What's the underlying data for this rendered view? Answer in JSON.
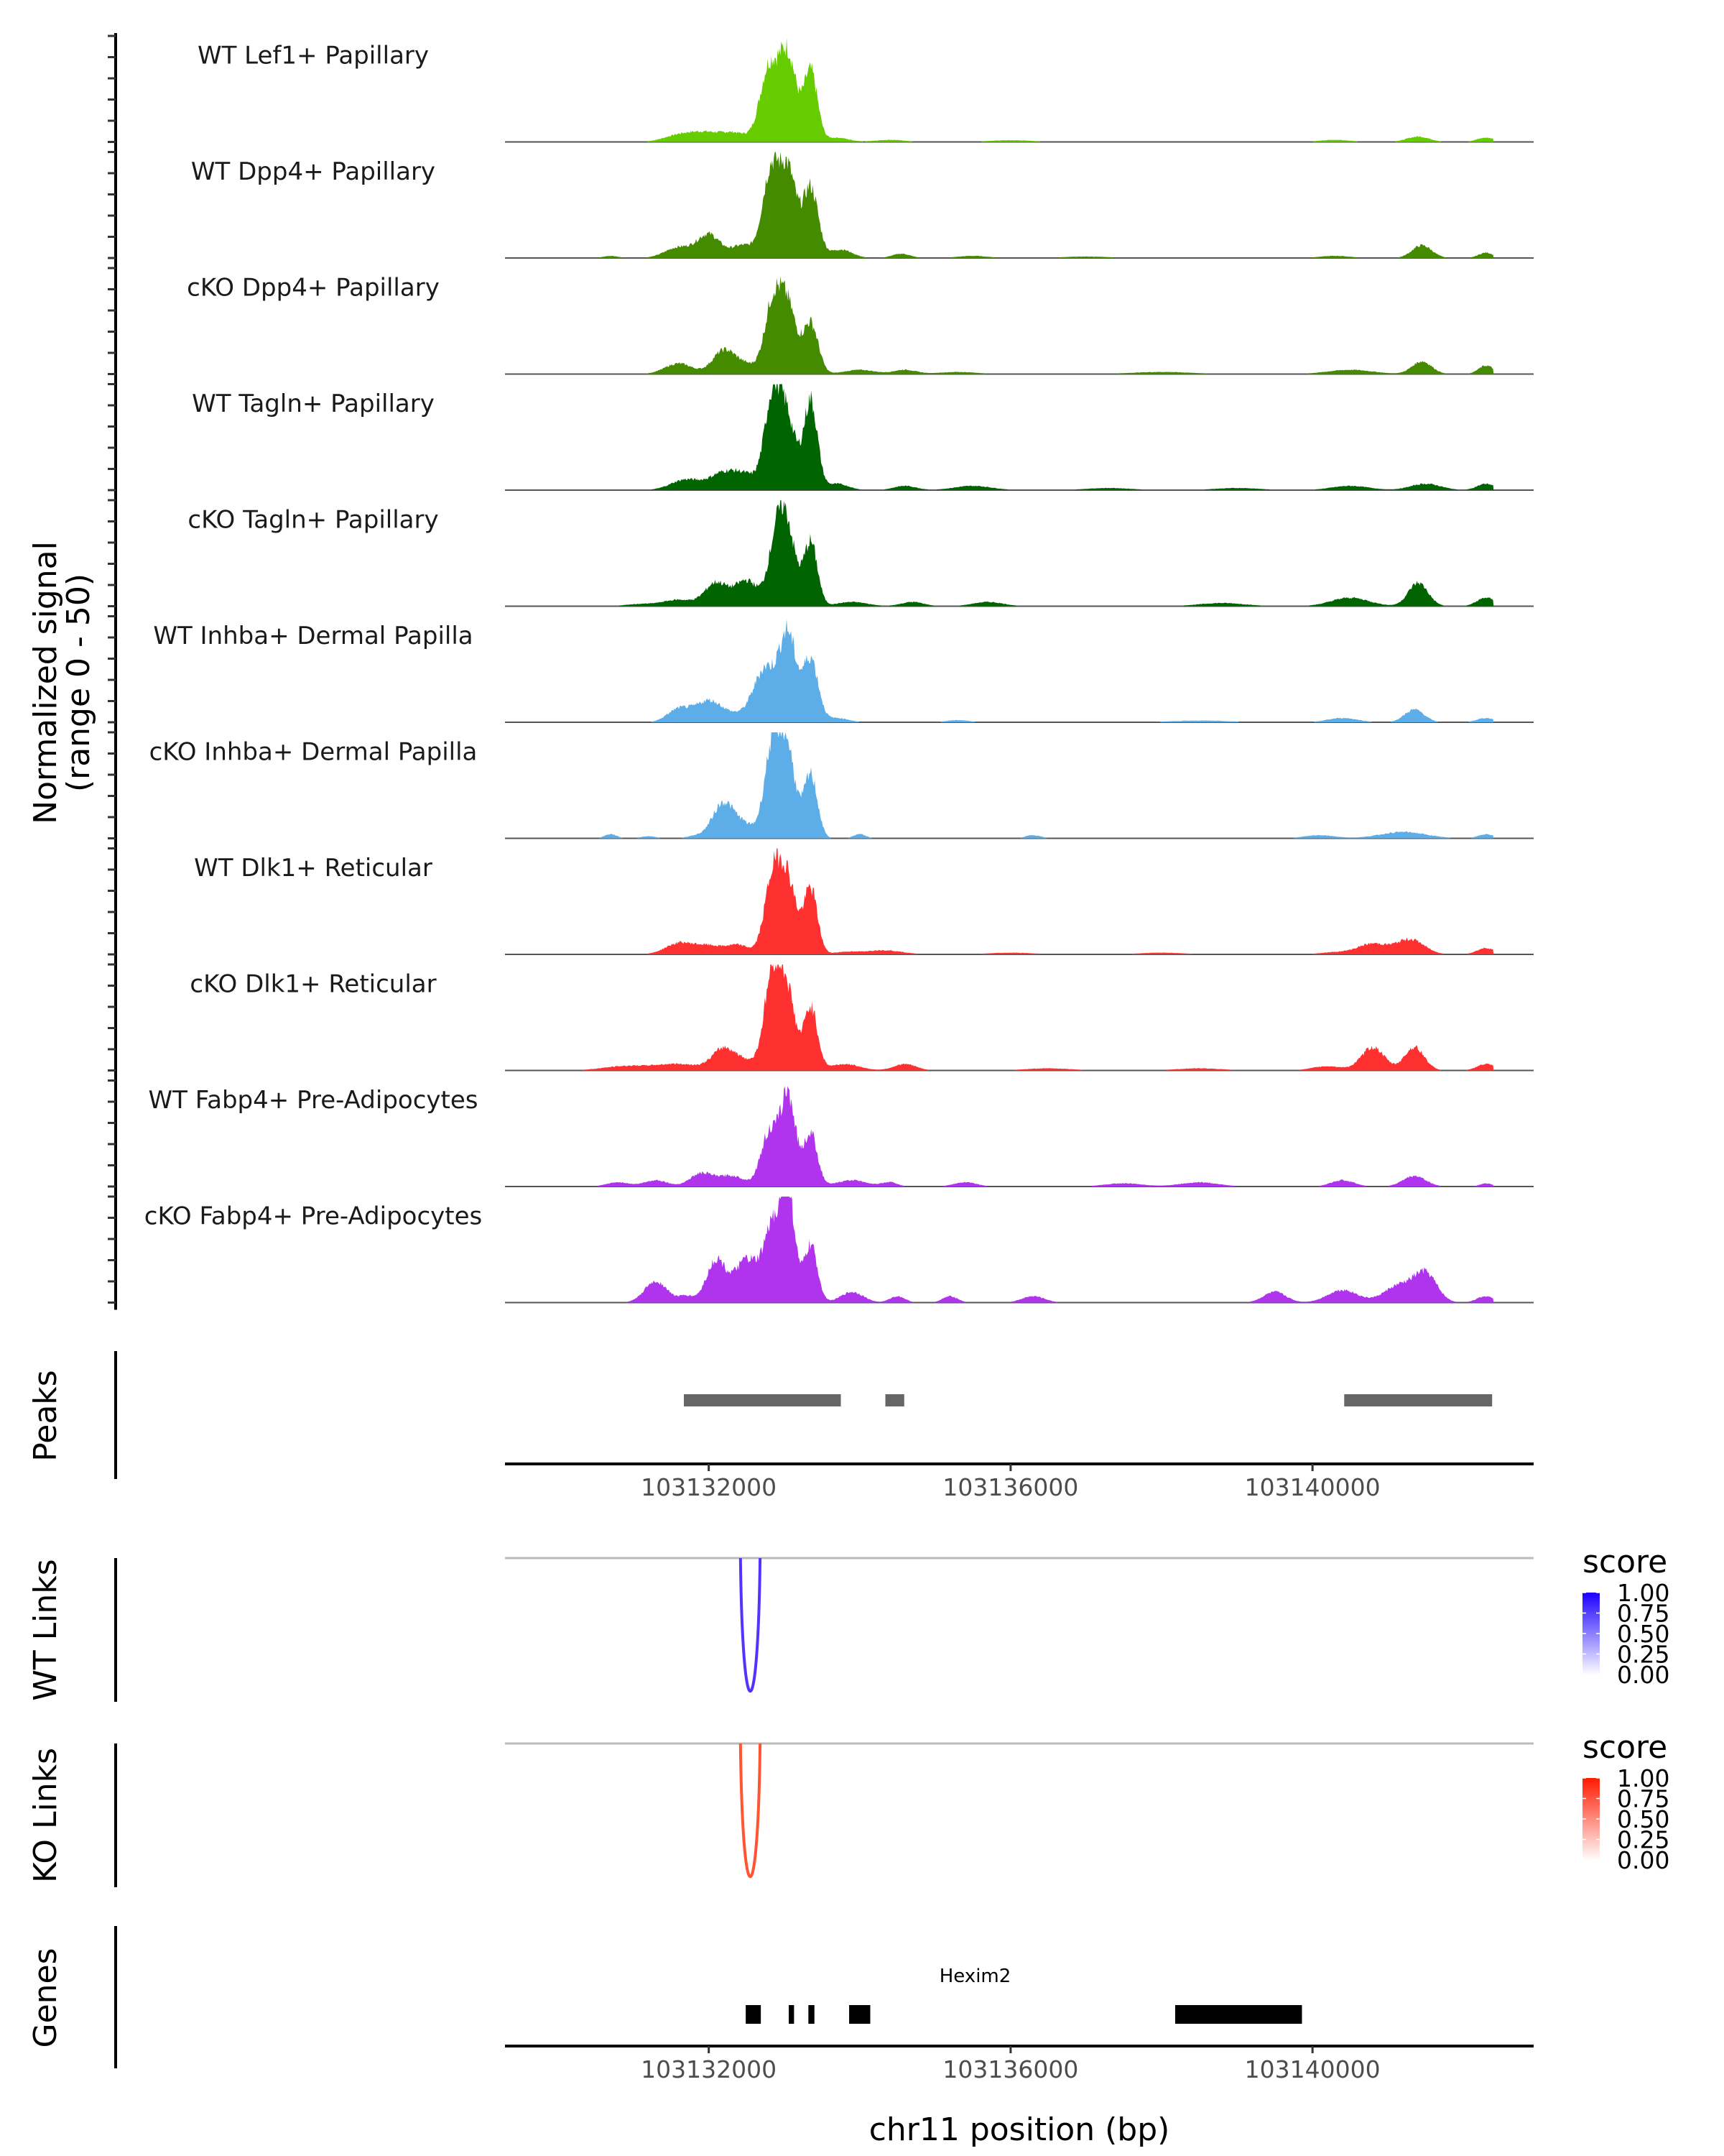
{
  "chart_data": {
    "type": "area",
    "title": "",
    "region": {
      "chrom": "chr11",
      "start": 103129300,
      "end": 103142930
    },
    "xlabel": "chr11 position (bp)",
    "x_ticks": [
      103132000,
      103136000,
      103140000
    ],
    "x_tick_labels": [
      "103132000",
      "103136000",
      "103140000"
    ],
    "coverage": {
      "ylabel_line1": "Normalized signal",
      "ylabel_line2": "(range 0 - 50)",
      "ylim": [
        0,
        50
      ],
      "data_start": 103130200,
      "data_end": 103142400,
      "tracks": [
        {
          "name": "WT Lef1+ Papillary",
          "color": "#66cc00",
          "peaks": [
            [
              103131600,
              3,
              200
            ],
            [
              103131950,
              4,
              200
            ],
            [
              103132350,
              4,
              180
            ],
            [
              103132800,
              35,
              120
            ],
            [
              103133050,
              40,
              110
            ],
            [
              103133350,
              33,
              90
            ],
            [
              103133700,
              2,
              150
            ],
            [
              103134400,
              1,
              200
            ],
            [
              103136000,
              0.8,
              300
            ],
            [
              103140300,
              1,
              200
            ],
            [
              103141400,
              2.5,
              150
            ],
            [
              103142300,
              2,
              120
            ]
          ]
        },
        {
          "name": "WT Dpp4+ Papillary",
          "color": "#458b00",
          "peaks": [
            [
              103130700,
              1,
              100
            ],
            [
              103131600,
              5,
              180
            ],
            [
              103132000,
              11,
              150
            ],
            [
              103132450,
              6,
              150
            ],
            [
              103132820,
              40,
              110
            ],
            [
              103133050,
              40,
              110
            ],
            [
              103133350,
              33,
              100
            ],
            [
              103133750,
              4,
              150
            ],
            [
              103134550,
              2,
              120
            ],
            [
              103135500,
              1,
              200
            ],
            [
              103137000,
              0.7,
              300
            ],
            [
              103140300,
              1,
              200
            ],
            [
              103141450,
              6,
              130
            ],
            [
              103142300,
              2.5,
              100
            ]
          ]
        },
        {
          "name": "cKO Dpp4+ Papillary",
          "color": "#458b00",
          "peaks": [
            [
              103131600,
              5,
              180
            ],
            [
              103132200,
              11,
              150
            ],
            [
              103132500,
              4,
              150
            ],
            [
              103132850,
              33,
              110
            ],
            [
              103133050,
              30,
              110
            ],
            [
              103133350,
              24,
              100
            ],
            [
              103134000,
              2,
              200
            ],
            [
              103134600,
              2,
              150
            ],
            [
              103135300,
              1,
              250
            ],
            [
              103138000,
              1,
              400
            ],
            [
              103140500,
              2,
              300
            ],
            [
              103141450,
              6,
              130
            ],
            [
              103142300,
              4,
              100
            ]
          ]
        },
        {
          "name": "WT Tagln+ Papillary",
          "color": "#006400",
          "peaks": [
            [
              103131700,
              5,
              200
            ],
            [
              103132200,
              8,
              180
            ],
            [
              103132500,
              6,
              150
            ],
            [
              103132850,
              44,
              110
            ],
            [
              103133050,
              30,
              110
            ],
            [
              103133350,
              42,
              90
            ],
            [
              103133700,
              3,
              150
            ],
            [
              103134600,
              2,
              150
            ],
            [
              103135500,
              2,
              250
            ],
            [
              103137300,
              1,
              300
            ],
            [
              103139000,
              1,
              300
            ],
            [
              103140500,
              2,
              250
            ],
            [
              103141500,
              3,
              200
            ],
            [
              103142300,
              3,
              120
            ]
          ]
        },
        {
          "name": "cKO Tagln+ Papillary",
          "color": "#006400",
          "peaks": [
            [
              103131100,
              1,
              200
            ],
            [
              103131600,
              3,
              200
            ],
            [
              103132100,
              11,
              150
            ],
            [
              103132500,
              12,
              150
            ],
            [
              103132900,
              30,
              110
            ],
            [
              103133050,
              30,
              110
            ],
            [
              103133350,
              30,
              90
            ],
            [
              103133900,
              2,
              200
            ],
            [
              103134700,
              2,
              150
            ],
            [
              103135700,
              2,
              200
            ],
            [
              103138800,
              1.5,
              300
            ],
            [
              103140500,
              4,
              250
            ],
            [
              103141400,
              11,
              130
            ],
            [
              103142300,
              4,
              120
            ]
          ]
        },
        {
          "name": "WT Inhba+ Dermal Papilla",
          "color": "#5dade8",
          "peaks": [
            [
              103131600,
              6,
              150
            ],
            [
              103132000,
              10,
              180
            ],
            [
              103132400,
              3,
              180
            ],
            [
              103132750,
              25,
              150
            ],
            [
              103133050,
              40,
              110
            ],
            [
              103133350,
              30,
              100
            ],
            [
              103133700,
              2,
              150
            ],
            [
              103135300,
              1,
              150
            ],
            [
              103138500,
              0.8,
              400
            ],
            [
              103140400,
              2,
              200
            ],
            [
              103141350,
              6,
              130
            ],
            [
              103142300,
              2,
              120
            ]
          ]
        },
        {
          "name": "cKO Inhba+ Dermal Papilla",
          "color": "#5dade8",
          "peaks": [
            [
              103130700,
              2,
              80
            ],
            [
              103131200,
              1,
              100
            ],
            [
              103131800,
              1,
              100
            ],
            [
              103132200,
              17,
              150
            ],
            [
              103132500,
              5,
              120
            ],
            [
              103132850,
              45,
              110
            ],
            [
              103133050,
              38,
              100
            ],
            [
              103133350,
              30,
              90
            ],
            [
              103134000,
              2,
              80
            ],
            [
              103136300,
              1.5,
              100
            ],
            [
              103140100,
              1.5,
              200
            ],
            [
              103141200,
              3,
              300
            ],
            [
              103142300,
              2,
              100
            ]
          ]
        },
        {
          "name": "WT Dlk1+ Reticular",
          "color": "#ff3030",
          "peaks": [
            [
              103131600,
              5,
              180
            ],
            [
              103132000,
              4,
              200
            ],
            [
              103132400,
              4,
              150
            ],
            [
              103132850,
              36,
              110
            ],
            [
              103133050,
              33,
              110
            ],
            [
              103133350,
              31,
              90
            ],
            [
              103133800,
              1,
              150
            ],
            [
              103134300,
              2,
              250
            ],
            [
              103136000,
              0.8,
              300
            ],
            [
              103138000,
              0.8,
              300
            ],
            [
              103140300,
              1,
              200
            ],
            [
              103140800,
              5,
              200
            ],
            [
              103141300,
              7,
              180
            ],
            [
              103142300,
              3,
              120
            ]
          ]
        },
        {
          "name": "cKO Dlk1+ Reticular",
          "color": "#ff3030",
          "peaks": [
            [
              103130900,
              2,
              300
            ],
            [
              103131600,
              3,
              300
            ],
            [
              103132200,
              10,
              150
            ],
            [
              103132500,
              4,
              150
            ],
            [
              103132850,
              47,
              110
            ],
            [
              103133050,
              33,
              100
            ],
            [
              103133350,
              30,
              90
            ],
            [
              103133800,
              3,
              200
            ],
            [
              103134600,
              3,
              150
            ],
            [
              103136500,
              1,
              300
            ],
            [
              103138500,
              1,
              300
            ],
            [
              103140200,
              2,
              200
            ],
            [
              103140800,
              11,
              150
            ],
            [
              103141350,
              11,
              130
            ],
            [
              103142300,
              3,
              120
            ]
          ]
        },
        {
          "name": "WT Fabp4+ Pre-Adipocytes",
          "color": "#b033ee",
          "peaks": [
            [
              103130800,
              2,
              150
            ],
            [
              103131300,
              3,
              150
            ],
            [
              103131900,
              6,
              150
            ],
            [
              103132300,
              5,
              180
            ],
            [
              103132800,
              25,
              110
            ],
            [
              103133050,
              43,
              100
            ],
            [
              103133350,
              25,
              90
            ],
            [
              103133900,
              3,
              200
            ],
            [
              103134400,
              2,
              100
            ],
            [
              103135400,
              2,
              150
            ],
            [
              103137500,
              1.5,
              250
            ],
            [
              103138500,
              2,
              250
            ],
            [
              103140400,
              3,
              150
            ],
            [
              103141350,
              5,
              150
            ],
            [
              103142300,
              1.5,
              80
            ]
          ]
        },
        {
          "name": "cKO Fabp4+ Pre-Adipocytes",
          "color": "#b033ee",
          "peaks": [
            [
              103131300,
              10,
              150
            ],
            [
              103131700,
              3,
              100
            ],
            [
              103132100,
              20,
              130
            ],
            [
              103132500,
              20,
              150
            ],
            [
              103132850,
              35,
              120
            ],
            [
              103133050,
              50,
              90
            ],
            [
              103133350,
              27,
              90
            ],
            [
              103133900,
              5,
              150
            ],
            [
              103134500,
              3,
              100
            ],
            [
              103135200,
              3,
              100
            ],
            [
              103136300,
              3,
              150
            ],
            [
              103139500,
              5,
              150
            ],
            [
              103140400,
              6,
              200
            ],
            [
              103141150,
              8,
              200
            ],
            [
              103141500,
              13,
              150
            ],
            [
              103142300,
              3,
              120
            ]
          ]
        }
      ]
    },
    "peaks_track": {
      "label": "Peaks",
      "color": "#666666",
      "regions": [
        [
          103131670,
          103133750
        ],
        [
          103134340,
          103134590
        ],
        [
          103140420,
          103142380
        ]
      ]
    },
    "links": [
      {
        "label": "WT Links",
        "color": "#5533ff",
        "legend_title": "score",
        "legend_high": "#1a00ff",
        "legend_ticks": [
          "1.00",
          "0.75",
          "0.50",
          "0.25",
          "0.00"
        ],
        "arcs": [
          {
            "start": 103132420,
            "end": 103132680,
            "score": 0.8
          }
        ]
      },
      {
        "label": "KO Links",
        "color": "#ff5533",
        "legend_title": "score",
        "legend_high": "#ff1a00",
        "legend_ticks": [
          "1.00",
          "0.75",
          "0.50",
          "0.25",
          "0.00"
        ],
        "arcs": [
          {
            "start": 103132420,
            "end": 103132680,
            "score": 0.8
          }
        ]
      }
    ],
    "genes": {
      "label": "Genes",
      "color": "#00008b",
      "items": [
        {
          "name": "Hexim2",
          "strand": "+",
          "start": 103132390,
          "end": 103138860,
          "exons": [
            [
              103132490,
              103132690
            ],
            [
              103133060,
              103133130
            ],
            [
              103133320,
              103133400
            ],
            [
              103133860,
              103134140
            ],
            [
              103138180,
              103139860
            ]
          ]
        }
      ]
    }
  }
}
